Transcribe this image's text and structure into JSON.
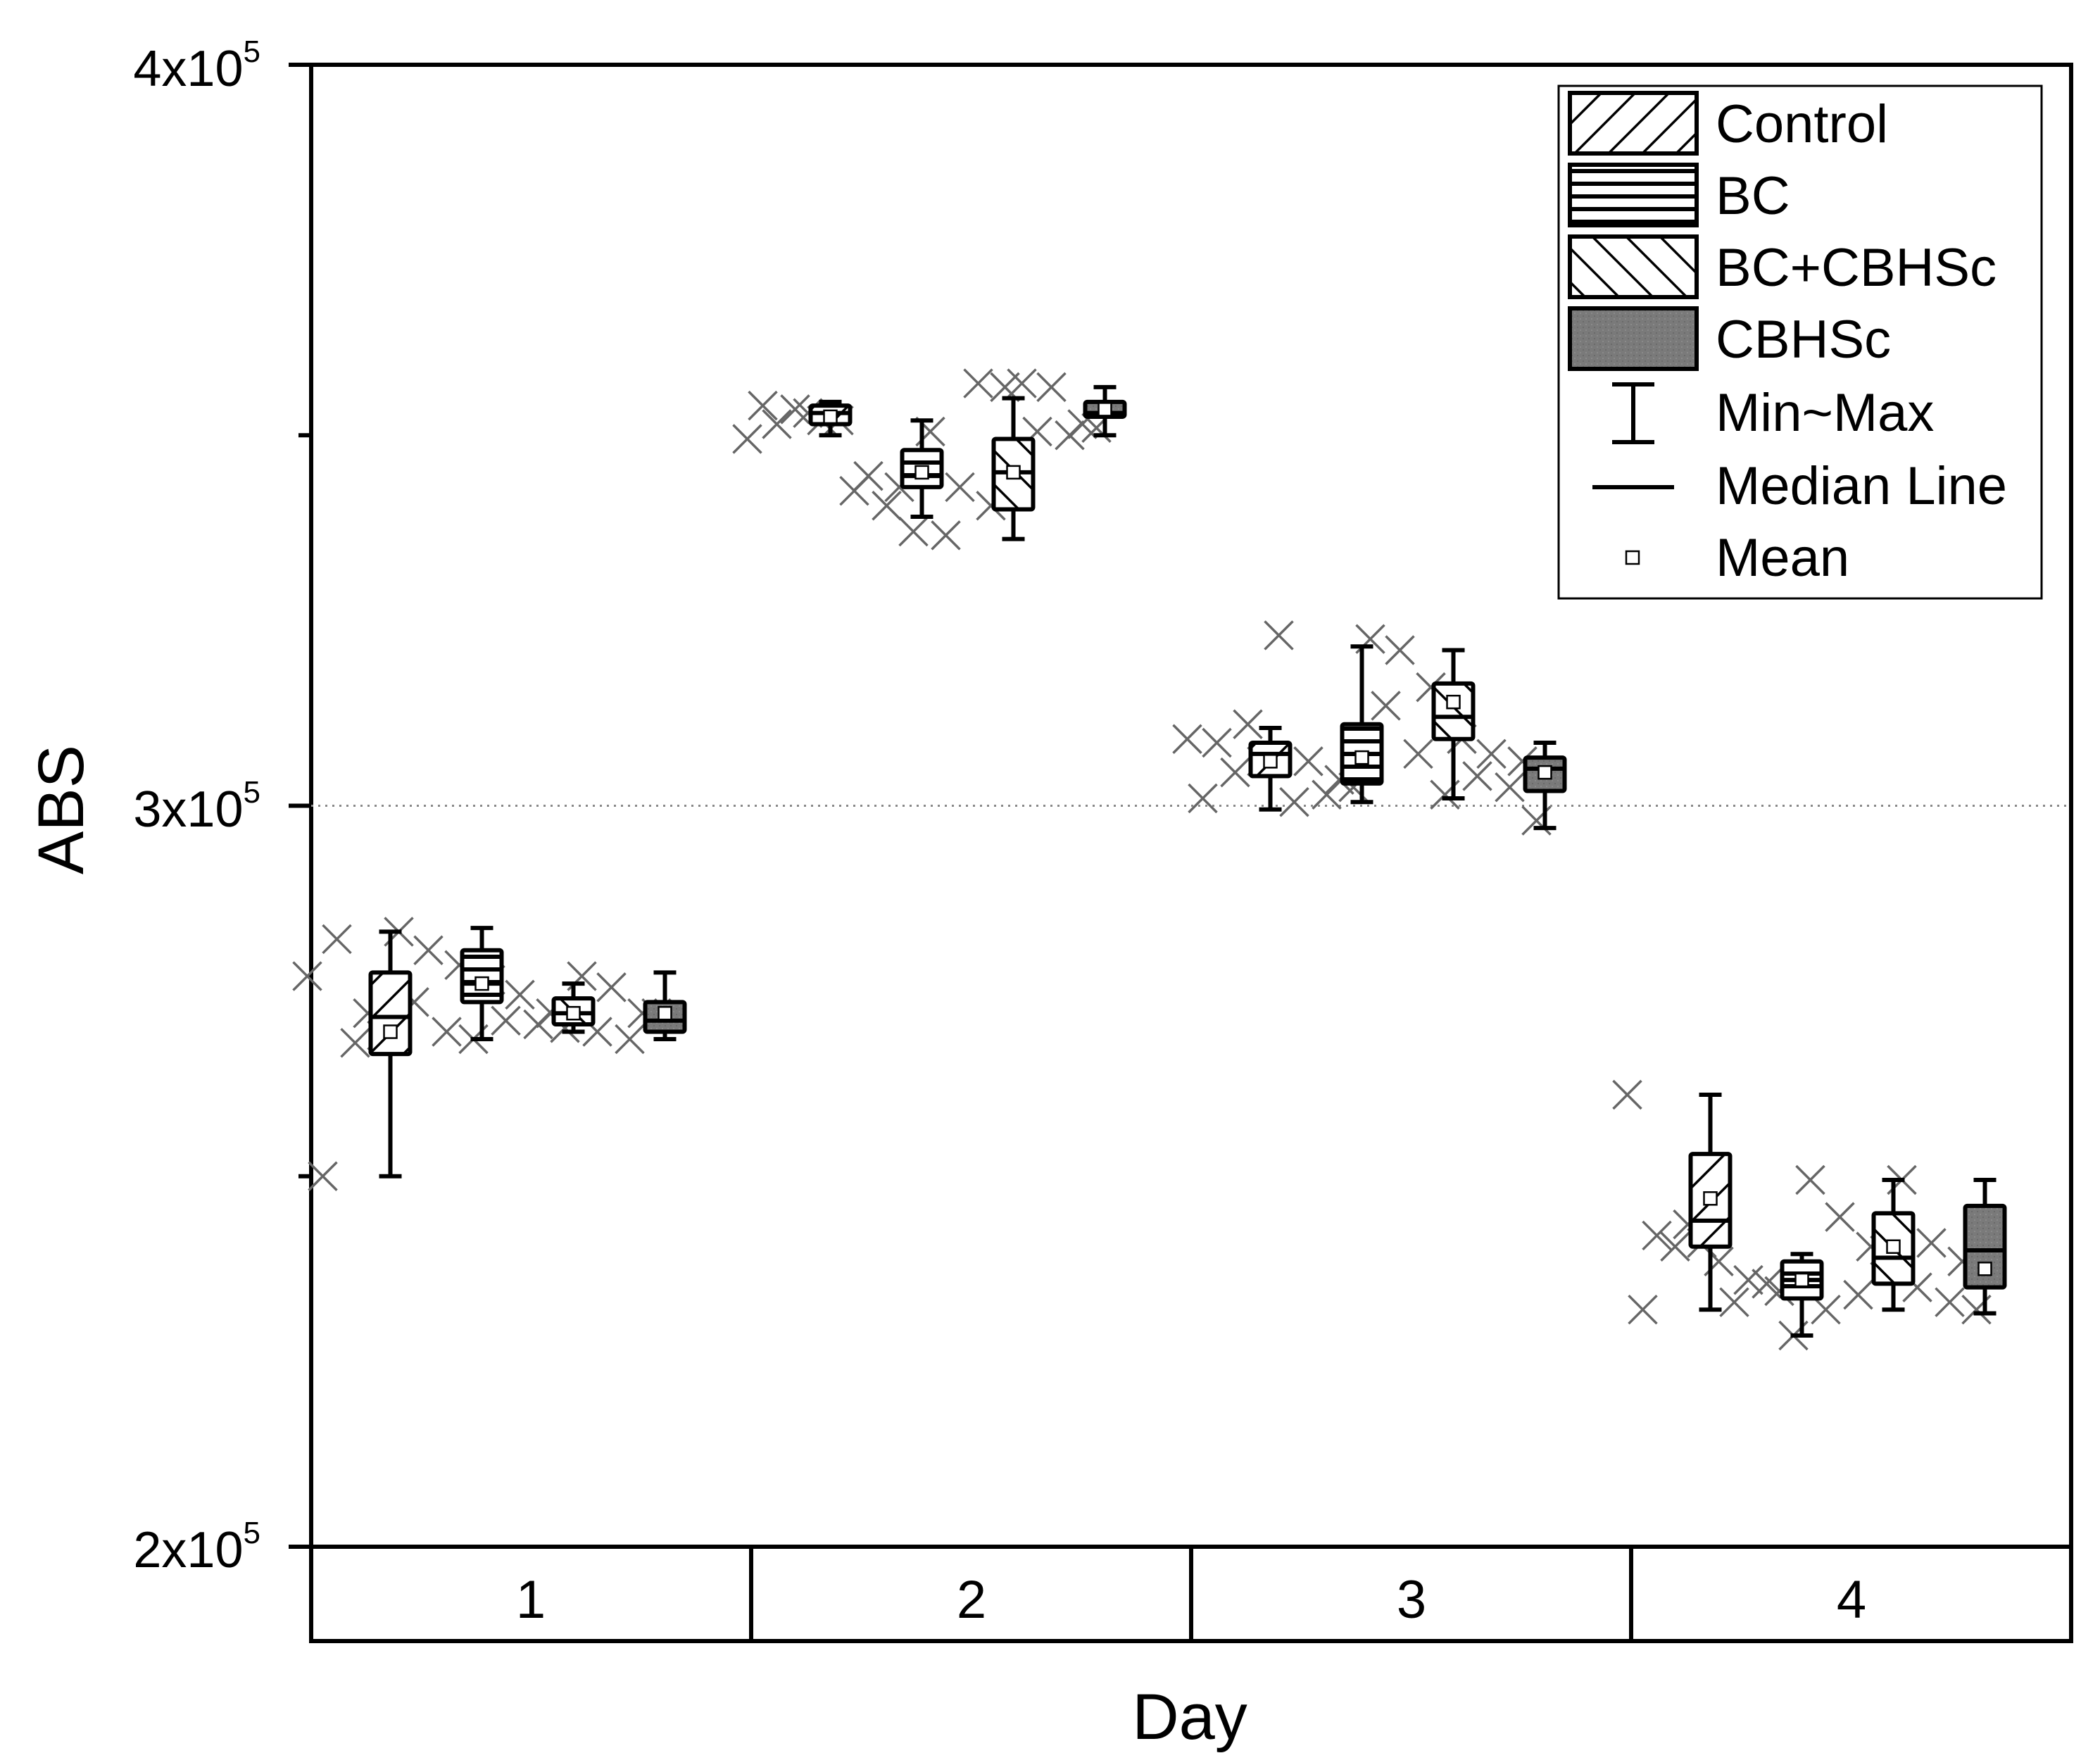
{
  "chart_data": {
    "type": "box",
    "xlabel": "Day",
    "ylabel": "ABS",
    "ylim": [
      200000,
      400000
    ],
    "y_ticks": [
      {
        "value": 200000,
        "mantissa": "2x10",
        "exp": "5"
      },
      {
        "value": 300000,
        "mantissa": "3x10",
        "exp": "5"
      },
      {
        "value": 400000,
        "mantissa": "4x10",
        "exp": "5"
      }
    ],
    "y_minor_ticks": [
      250000,
      350000
    ],
    "reference_line": 300000,
    "categories": [
      "1",
      "2",
      "3",
      "4"
    ],
    "legend": {
      "position": "top-right",
      "entries": [
        {
          "key": "control",
          "label": "Control"
        },
        {
          "key": "bc",
          "label": "BC"
        },
        {
          "key": "bccbhsc",
          "label": "BC+CBHSc"
        },
        {
          "key": "cbhsc",
          "label": "CBHSc"
        },
        {
          "key": "minmax",
          "label": "Min~Max"
        },
        {
          "key": "median",
          "label": "Median Line"
        },
        {
          "key": "mean",
          "label": "Mean"
        }
      ]
    },
    "colors": {
      "cbhsc_fill": "#7a7a7a",
      "box_fill": "#ffffff",
      "outlier": "#666666",
      "axis": "#000000"
    },
    "series": [
      {
        "name": "Control",
        "pattern": "backslash",
        "boxes": [
          {
            "day": "1",
            "min": 250000,
            "q1": 266500,
            "median": 271500,
            "q3": 277500,
            "max": 283000,
            "mean": 269500,
            "points": [
              277000,
              282000,
              272000,
              250000,
              268000,
              269000
            ]
          },
          {
            "day": "2",
            "min": 350000,
            "q1": 351500,
            "median": 353000,
            "q3": 354000,
            "max": 354500,
            "mean": 352500,
            "points": [
              349500,
              351500,
              353000,
              354000,
              353500,
              352000
            ]
          },
          {
            "day": "3",
            "min": 299500,
            "q1": 304000,
            "median": 307000,
            "q3": 308500,
            "max": 310500,
            "mean": 306000,
            "points": [
              309000,
              308500,
              311000,
              301000,
              304500,
              306000
            ]
          },
          {
            "day": "4",
            "min": 232000,
            "q1": 240500,
            "median": 244000,
            "q3": 253000,
            "max": 261000,
            "mean": 247000,
            "points": [
              261000,
              242000,
              243500,
              232000,
              240500,
              241000
            ]
          }
        ]
      },
      {
        "name": "BC",
        "pattern": "horizontal",
        "boxes": [
          {
            "day": "1",
            "min": 268500,
            "q1": 273500,
            "median": 276000,
            "q3": 280500,
            "max": 283500,
            "mean": 276000,
            "points": [
              283000,
              280500,
              278500,
              273500,
              269500,
              268500
            ]
          },
          {
            "day": "2",
            "min": 339000,
            "q1": 343000,
            "median": 344500,
            "q3": 348000,
            "max": 352000,
            "mean": 345000,
            "points": [
              352000,
              344500,
              343000,
              342500,
              340500,
              337000
            ]
          },
          {
            "day": "3",
            "min": 300500,
            "q1": 303000,
            "median": 307000,
            "q3": 311000,
            "max": 321500,
            "mean": 306500,
            "points": [
              323000,
              306000,
              303500,
              300500,
              301500,
              302500
            ]
          },
          {
            "day": "4",
            "min": 228500,
            "q1": 233500,
            "median": 236000,
            "q3": 238500,
            "max": 239500,
            "mean": 236000,
            "points": [
              238500,
              236000,
              234500,
              233000,
              235500,
              228500
            ]
          }
        ]
      },
      {
        "name": "BC+CBHSc",
        "pattern": "slash",
        "boxes": [
          {
            "day": "1",
            "min": 269500,
            "q1": 270500,
            "median": 272000,
            "q3": 274000,
            "max": 276000,
            "mean": 272000,
            "points": [
              276500,
              274500,
              272000,
              271000,
              270500,
              270000
            ]
          },
          {
            "day": "2",
            "min": 336000,
            "q1": 340000,
            "median": 345000,
            "q3": 349500,
            "max": 355000,
            "mean": 345000,
            "points": [
              350500,
              343000,
              340500,
              336500,
              357000,
              356500
            ]
          },
          {
            "day": "3",
            "min": 301000,
            "q1": 309000,
            "median": 312000,
            "q3": 316500,
            "max": 321000,
            "mean": 314000,
            "points": [
              322500,
              321000,
              316000,
              313500,
              307000,
              301500
            ]
          },
          {
            "day": "4",
            "min": 232000,
            "q1": 235500,
            "median": 239000,
            "q3": 245000,
            "max": 249500,
            "mean": 240500,
            "points": [
              249500,
              244500,
              240500,
              232000,
              234000,
              240000
            ]
          }
        ]
      },
      {
        "name": "CBHSc",
        "pattern": "solid",
        "boxes": [
          {
            "day": "1",
            "min": 268500,
            "q1": 269500,
            "median": 271000,
            "q3": 273500,
            "max": 277500,
            "mean": 272000,
            "points": [
              277000,
              275500,
              272000,
              269500,
              268500,
              272000
            ]
          },
          {
            "day": "2",
            "min": 350000,
            "q1": 352500,
            "median": 353000,
            "q3": 354500,
            "max": 356500,
            "mean": 353500,
            "points": [
              357000,
              356500,
              351500,
              350500,
              350000,
              351000
            ]
          },
          {
            "day": "3",
            "min": 297000,
            "q1": 302000,
            "median": 305000,
            "q3": 306500,
            "max": 308500,
            "mean": 304500,
            "points": [
              309000,
              307000,
              306000,
              304000,
              302500,
              298000
            ]
          },
          {
            "day": "4",
            "min": 231500,
            "q1": 235000,
            "median": 240000,
            "q3": 246000,
            "max": 249500,
            "mean": 237500,
            "points": [
              249500,
              241000,
              238500,
              235000,
              233000,
              232000
            ]
          }
        ]
      }
    ]
  }
}
